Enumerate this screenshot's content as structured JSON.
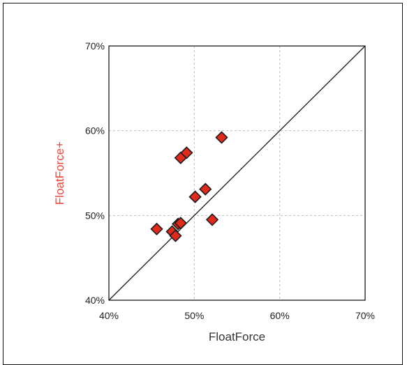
{
  "chart_data": {
    "type": "scatter",
    "xlabel": "FloatForce",
    "ylabel": "FloatForce+",
    "xlim": [
      0.4,
      0.7
    ],
    "ylim": [
      0.4,
      0.7
    ],
    "x_ticks": [
      "40%",
      "50%",
      "60%",
      "70%"
    ],
    "y_ticks": [
      "40%",
      "50%",
      "60%",
      "70%"
    ],
    "grid": true,
    "diagonal_reference_line": true,
    "marker": "diamond",
    "colors": {
      "marker_fill": "#e12a1c",
      "marker_stroke": "#1a1a1a",
      "ylabel_color": "#e8473b",
      "xlabel_color": "#333333",
      "grid_color": "#bdbdbd"
    },
    "points": [
      {
        "x": 0.456,
        "y": 0.484
      },
      {
        "x": 0.474,
        "y": 0.481
      },
      {
        "x": 0.478,
        "y": 0.476
      },
      {
        "x": 0.481,
        "y": 0.49
      },
      {
        "x": 0.484,
        "y": 0.491
      },
      {
        "x": 0.484,
        "y": 0.568
      },
      {
        "x": 0.491,
        "y": 0.574
      },
      {
        "x": 0.501,
        "y": 0.522
      },
      {
        "x": 0.513,
        "y": 0.531
      },
      {
        "x": 0.521,
        "y": 0.495
      },
      {
        "x": 0.532,
        "y": 0.592
      }
    ]
  }
}
